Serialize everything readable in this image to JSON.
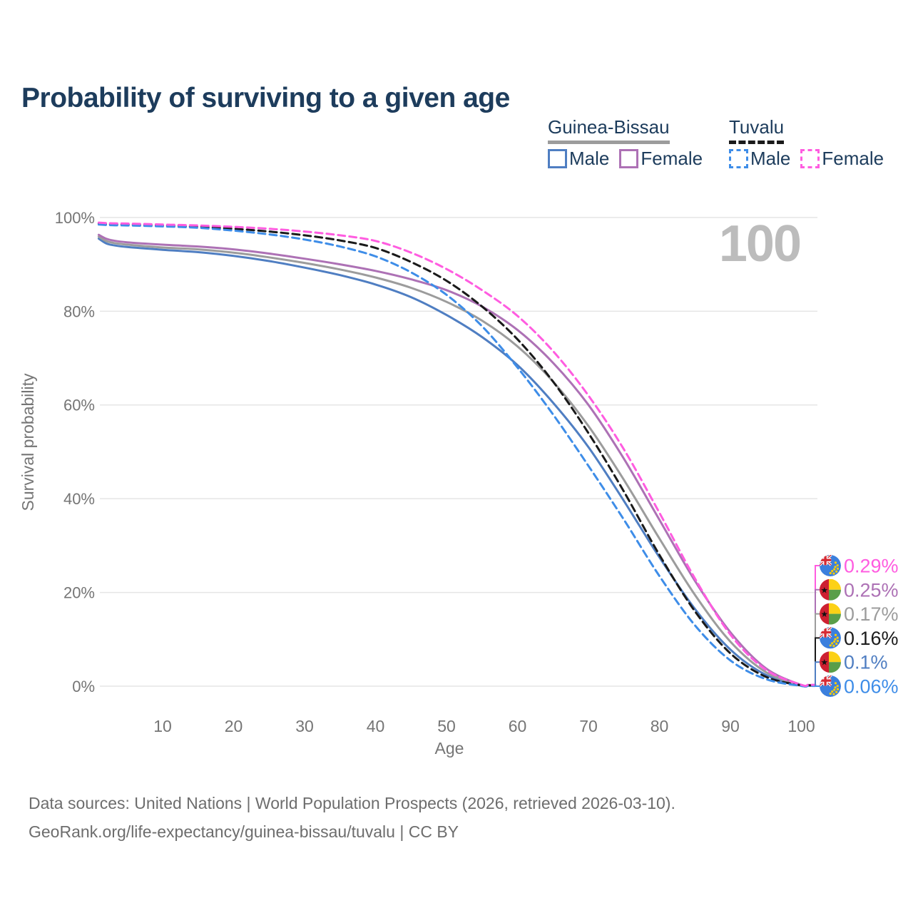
{
  "page": {
    "title": "Probability of surviving to a given age"
  },
  "legend": {
    "groups": [
      {
        "label": "Guinea-Bissau",
        "line_style": "solid",
        "line_color": "#9c9c9c",
        "items": [
          {
            "label": "Male",
            "color": "#4f7ec2",
            "style": "solid"
          },
          {
            "label": "Female",
            "color": "#ad71b5",
            "style": "solid"
          }
        ]
      },
      {
        "label": "Tuvalu",
        "line_style": "dashed",
        "line_color": "#1a1a1a",
        "items": [
          {
            "label": "Male",
            "color": "#3e8de8",
            "style": "dashed"
          },
          {
            "label": "Female",
            "color": "#ff5ce0",
            "style": "dashed"
          }
        ]
      }
    ]
  },
  "footer": {
    "line1": "Data sources: United Nations | World Population Prospects (2026, retrieved 2026-03-10).",
    "line2": "GeoRank.org/life-expectancy/guinea-bissau/tuvalu | CC BY"
  },
  "chart_data": {
    "type": "line",
    "title": "Probability of surviving to a given age",
    "xlabel": "Age",
    "ylabel": "Survival probability",
    "watermark": "100",
    "xlim": [
      1,
      100
    ],
    "ylim": [
      0,
      100
    ],
    "x_ticks": [
      10,
      20,
      30,
      40,
      50,
      60,
      70,
      80,
      90,
      100
    ],
    "y_ticks": [
      {
        "value": 0,
        "label": "0%"
      },
      {
        "value": 20,
        "label": "20%"
      },
      {
        "value": 40,
        "label": "40%"
      },
      {
        "value": 60,
        "label": "60%"
      },
      {
        "value": 80,
        "label": "80%"
      },
      {
        "value": 100,
        "label": "100%"
      }
    ],
    "grid": true,
    "ages": [
      1,
      2,
      3,
      5,
      10,
      15,
      20,
      25,
      30,
      35,
      40,
      45,
      50,
      55,
      60,
      65,
      70,
      75,
      80,
      85,
      90,
      95,
      100
    ],
    "series": [
      {
        "name": "Guinea-Bissau Male",
        "country": "Guinea-Bissau",
        "sex": "Male",
        "style": "solid",
        "color": "#4f7ec2",
        "values": [
          95.5,
          94.5,
          94.1,
          93.7,
          93.1,
          92.6,
          91.8,
          90.7,
          89.3,
          87.7,
          85.7,
          83.0,
          79.2,
          74.5,
          68.5,
          60.5,
          51.0,
          39.5,
          27.5,
          16.5,
          7.8,
          2.4,
          0.1
        ],
        "end_label": "0.1%"
      },
      {
        "name": "Guinea-Bissau Both sexes",
        "country": "Guinea-Bissau",
        "sex": "Both",
        "style": "solid",
        "color": "#9c9c9c",
        "values": [
          95.9,
          95.0,
          94.6,
          94.2,
          93.6,
          93.2,
          92.5,
          91.5,
          90.3,
          88.9,
          87.2,
          85.0,
          82.0,
          78.0,
          72.5,
          65.0,
          55.5,
          44.0,
          31.5,
          19.5,
          9.5,
          3.0,
          0.17
        ],
        "end_label": "0.17%"
      },
      {
        "name": "Guinea-Bissau Female",
        "country": "Guinea-Bissau",
        "sex": "Female",
        "style": "solid",
        "color": "#ad71b5",
        "values": [
          96.3,
          95.5,
          95.1,
          94.7,
          94.2,
          93.8,
          93.2,
          92.3,
          91.2,
          90.0,
          88.6,
          86.8,
          84.5,
          81.0,
          76.0,
          69.0,
          60.0,
          48.5,
          35.5,
          22.5,
          11.5,
          3.8,
          0.25
        ],
        "end_label": "0.25%"
      },
      {
        "name": "Tuvalu Both sexes",
        "country": "Tuvalu",
        "sex": "Both",
        "style": "dashed",
        "color": "#1a1a1a",
        "values": [
          98.7,
          98.6,
          98.55,
          98.5,
          98.3,
          98.0,
          97.6,
          97.0,
          96.2,
          95.1,
          93.5,
          90.5,
          86.5,
          81.0,
          74.0,
          65.0,
          54.0,
          41.5,
          28.0,
          16.0,
          7.0,
          2.0,
          0.16
        ],
        "end_label": "0.16%"
      },
      {
        "name": "Tuvalu Male",
        "country": "Tuvalu",
        "sex": "Male",
        "style": "dashed",
        "color": "#3e8de8",
        "values": [
          98.5,
          98.4,
          98.35,
          98.3,
          98.1,
          97.8,
          97.2,
          96.4,
          95.3,
          93.8,
          91.7,
          88.3,
          83.5,
          76.8,
          68.0,
          58.0,
          47.0,
          35.5,
          23.5,
          13.0,
          5.5,
          1.5,
          0.06
        ],
        "end_label": "0.06%"
      },
      {
        "name": "Tuvalu Female",
        "country": "Tuvalu",
        "sex": "Female",
        "style": "dashed",
        "color": "#ff5ce0",
        "values": [
          98.9,
          98.8,
          98.75,
          98.7,
          98.5,
          98.3,
          98.0,
          97.6,
          97.0,
          96.2,
          95.0,
          92.5,
          89.0,
          84.5,
          79.0,
          71.5,
          62.0,
          50.5,
          37.0,
          23.0,
          11.0,
          3.5,
          0.29
        ],
        "end_label": "0.29%"
      }
    ],
    "end_labels": [
      {
        "series": "Tuvalu Female",
        "flag": "tuvalu",
        "value": "0.29%",
        "color": "#ff5ce0"
      },
      {
        "series": "Guinea-Bissau Female",
        "flag": "guinea-bissau",
        "value": "0.25%",
        "color": "#ad71b5"
      },
      {
        "series": "Guinea-Bissau Both sexes",
        "flag": "guinea-bissau",
        "value": "0.17%",
        "color": "#9c9c9c"
      },
      {
        "series": "Tuvalu Both sexes",
        "flag": "tuvalu",
        "value": "0.16%",
        "color": "#1a1a1a"
      },
      {
        "series": "Guinea-Bissau Male",
        "flag": "guinea-bissau",
        "value": "0.1%",
        "color": "#4f7ec2"
      },
      {
        "series": "Tuvalu Male",
        "flag": "tuvalu",
        "value": "0.06%",
        "color": "#3e8de8"
      }
    ],
    "legend_position": "top-right"
  }
}
